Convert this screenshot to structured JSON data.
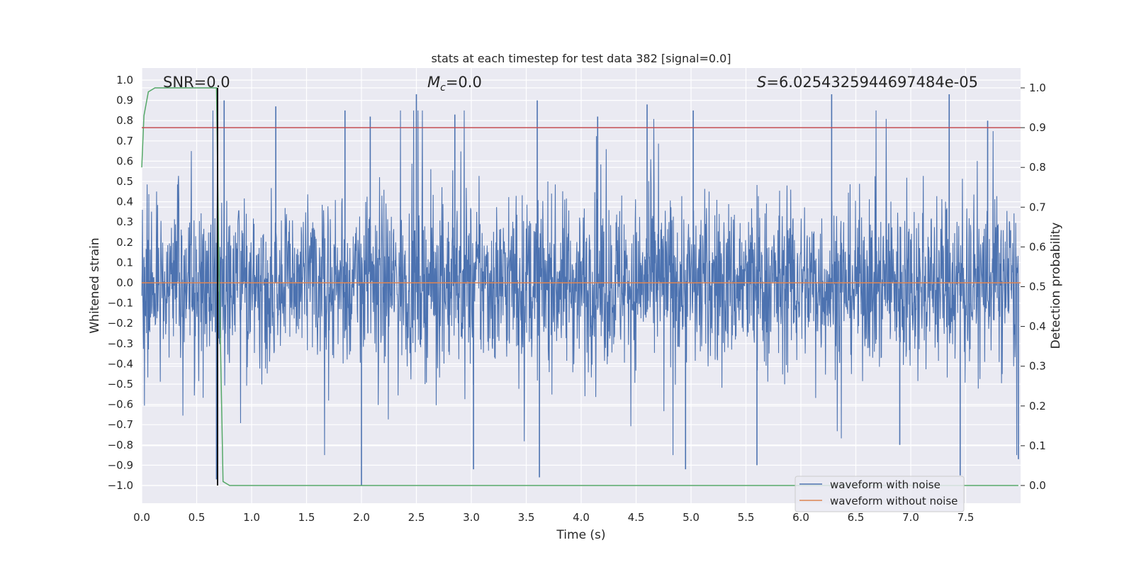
{
  "chart_data": {
    "type": "line",
    "title": "stats at each timestep for test data 382 [signal=0.0]",
    "xlabel": "Time (s)",
    "ylabel": "Whitened strain",
    "y2label": "Detection probability",
    "xlim": [
      0.0,
      8.0
    ],
    "ylim": [
      -1.1,
      1.06
    ],
    "y2lim": [
      -0.05,
      1.03
    ],
    "xticks": [
      "0.0",
      "0.5",
      "1.0",
      "1.5",
      "2.0",
      "2.5",
      "3.0",
      "3.5",
      "4.0",
      "4.5",
      "5.0",
      "5.5",
      "6.0",
      "6.5",
      "7.0",
      "7.5"
    ],
    "yticks": [
      "1.0",
      "0.9",
      "0.8",
      "0.7",
      "0.6",
      "0.5",
      "0.4",
      "0.3",
      "0.2",
      "0.1",
      "0.0",
      "−0.1",
      "−0.2",
      "−0.3",
      "−0.4",
      "−0.5",
      "−0.6",
      "−0.7",
      "−0.8",
      "−0.9",
      "−1.0"
    ],
    "y2ticks": [
      "1.0",
      "0.9",
      "0.8",
      "0.7",
      "0.6",
      "0.5",
      "0.4",
      "0.3",
      "0.2",
      "0.1",
      "0.0"
    ],
    "grid": true,
    "legend_position": "lower-right",
    "annotations": {
      "snr": "SNR=0.0",
      "mc": "M_c=0.0",
      "s": "S=6.025432594469748 4e-05"
    },
    "series": [
      {
        "name": "waveform with noise",
        "color": "#4c72b0",
        "axis": "left",
        "description_values": "dense noise, envelope approx -0.6..0.6 with spikes up to about 0.92 and down to about -1.0",
        "peaks": [
          {
            "x": 0.68,
            "y": -0.97
          },
          {
            "x": 0.75,
            "y": 0.9
          },
          {
            "x": 1.22,
            "y": 0.87
          },
          {
            "x": 1.85,
            "y": 0.85
          },
          {
            "x": 2.0,
            "y": -1.0
          },
          {
            "x": 2.08,
            "y": 0.82
          },
          {
            "x": 2.5,
            "y": 0.93
          },
          {
            "x": 2.85,
            "y": 0.83
          },
          {
            "x": 3.02,
            "y": -0.92
          },
          {
            "x": 3.6,
            "y": 0.9
          },
          {
            "x": 3.62,
            "y": -0.96
          },
          {
            "x": 4.15,
            "y": 0.82
          },
          {
            "x": 4.6,
            "y": 0.88
          },
          {
            "x": 4.95,
            "y": -0.92
          },
          {
            "x": 5.02,
            "y": 0.85
          },
          {
            "x": 5.6,
            "y": -0.9
          },
          {
            "x": 6.28,
            "y": 0.93
          },
          {
            "x": 6.9,
            "y": -0.8
          },
          {
            "x": 7.35,
            "y": 0.93
          },
          {
            "x": 7.45,
            "y": -0.95
          },
          {
            "x": 7.7,
            "y": 0.8
          },
          {
            "x": 7.98,
            "y": -0.87
          }
        ]
      },
      {
        "name": "waveform without noise",
        "color": "#dd8452",
        "axis": "left",
        "x": [
          0.0,
          8.0
        ],
        "values": [
          0.0,
          0.0
        ]
      },
      {
        "name": "",
        "color": "#55a868",
        "axis": "right",
        "x": [
          0.0,
          0.02,
          0.06,
          0.12,
          0.5,
          0.68,
          0.7,
          0.74,
          0.8,
          7.98
        ],
        "values": [
          0.8,
          0.93,
          0.99,
          1.0,
          1.0,
          1.0,
          0.6,
          0.01,
          0.0,
          0.0
        ]
      },
      {
        "name": "",
        "color": "#c44e52",
        "axis": "right",
        "x": [
          0.0,
          8.0
        ],
        "values": [
          0.9,
          0.9
        ]
      },
      {
        "name": "",
        "color": "#000000",
        "axis": "right",
        "x": [
          0.69,
          0.69
        ],
        "values": [
          0.0,
          1.0
        ]
      }
    ]
  }
}
